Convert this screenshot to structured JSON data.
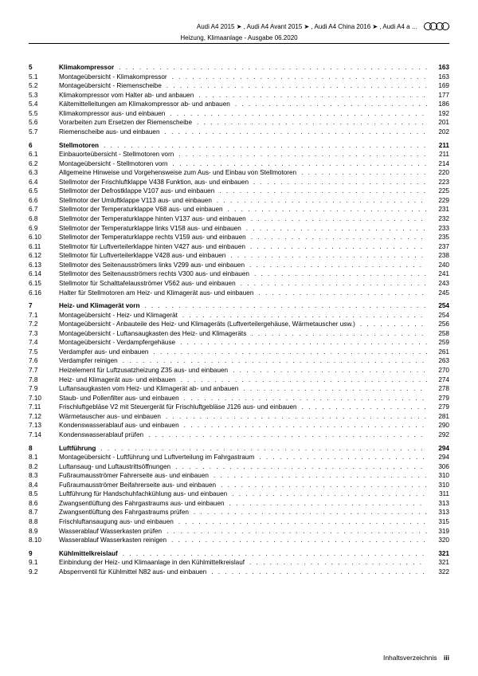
{
  "header": {
    "line1": "Audi A4 2015 ➤ , Audi A4 Avant 2015 ➤ , Audi A4 China 2016 ➤ , Audi A4 a ...",
    "line2": "Heizung, Klimaanlage - Ausgabe 06.2020"
  },
  "footer": {
    "label": "Inhaltsverzeichnis",
    "page": "iii"
  },
  "sections": [
    {
      "num": "5",
      "title": "Klimakompressor",
      "page": "163",
      "head": true,
      "items": [
        {
          "num": "5.1",
          "title": "Montageübersicht - Klimakompressor",
          "page": "163"
        },
        {
          "num": "5.2",
          "title": "Montageübersicht - Riemenscheibe",
          "page": "169"
        },
        {
          "num": "5.3",
          "title": "Klimakompressor vom Halter ab- und anbauen",
          "page": "177"
        },
        {
          "num": "5.4",
          "title": "Kältemittelleitungen am Klimakompressor ab- und anbauen",
          "page": "186"
        },
        {
          "num": "5.5",
          "title": "Klimakompressor aus- und einbauen",
          "page": "192"
        },
        {
          "num": "5.6",
          "title": "Vorarbeiten zum Ersetzen der Riemenscheibe",
          "page": "201"
        },
        {
          "num": "5.7",
          "title": "Riemenscheibe aus- und einbauen",
          "page": "202"
        }
      ]
    },
    {
      "num": "6",
      "title": "Stellmotoren",
      "page": "211",
      "head": true,
      "items": [
        {
          "num": "6.1",
          "title": "Einbauorteübersicht - Stellmotoren vorn",
          "page": "211"
        },
        {
          "num": "6.2",
          "title": "Montageübersicht - Stellmotoren vorn",
          "page": "214"
        },
        {
          "num": "6.3",
          "title": "Allgemeine Hinweise und Vorgehensweise zum Aus- und Einbau von Stellmotoren",
          "page": "220"
        },
        {
          "num": "6.4",
          "title": "Stellmotor der Frischluftklappe V438 Funktion, aus- und einbauen",
          "page": "223"
        },
        {
          "num": "6.5",
          "title": "Stellmotor der Defrostklappe V107 aus- und einbauen",
          "page": "225"
        },
        {
          "num": "6.6",
          "title": "Stellmotor der Umluftklappe V113 aus- und einbauen",
          "page": "229"
        },
        {
          "num": "6.7",
          "title": "Stellmotor der Temperaturklappe V68 aus- und einbauen",
          "page": "231"
        },
        {
          "num": "6.8",
          "title": "Stellmotor der Temperaturklappe hinten V137 aus- und einbauen",
          "page": "232"
        },
        {
          "num": "6.9",
          "title": "Stellmotor der Temperaturklappe links V158 aus- und einbauen",
          "page": "233"
        },
        {
          "num": "6.10",
          "title": "Stellmotor der Temperaturklappe rechts V159 aus- und einbauen",
          "page": "235"
        },
        {
          "num": "6.11",
          "title": "Stellmotor für Luftverteilerklappe hinten V427 aus- und einbauen",
          "page": "237"
        },
        {
          "num": "6.12",
          "title": "Stellmotor für Luftverteilerklappe V428 aus- und einbauen",
          "page": "238"
        },
        {
          "num": "6.13",
          "title": "Stellmotor des Seitenausströmers links V299 aus- und einbauen",
          "page": "240"
        },
        {
          "num": "6.14",
          "title": "Stellmotor des Seitenausströmers rechts V300 aus- und einbauen",
          "page": "241"
        },
        {
          "num": "6.15",
          "title": "Stellmotor für Schalttafelausströmer V562 aus- und einbauen",
          "page": "243"
        },
        {
          "num": "6.16",
          "title": "Halter für Stellmotoren am Heiz- und Klimagerät aus- und einbauen",
          "page": "245"
        }
      ]
    },
    {
      "num": "7",
      "title": "Heiz- und Klimagerät vorn",
      "page": "254",
      "head": true,
      "items": [
        {
          "num": "7.1",
          "title": "Montageübersicht - Heiz- und Klimagerät",
          "page": "254"
        },
        {
          "num": "7.2",
          "title": "Montageübersicht - Anbauteile des Heiz- und Klimageräts (Luftverteilergehäuse, Wärmetauscher usw.)",
          "page": "256",
          "multiline": true
        },
        {
          "num": "7.3",
          "title": "Montageübersicht - Luftansaugkasten des Heiz- und Klimageräts",
          "page": "258"
        },
        {
          "num": "7.4",
          "title": "Montageübersicht - Verdampfergehäuse",
          "page": "259"
        },
        {
          "num": "7.5",
          "title": "Verdampfer aus- und einbauen",
          "page": "261"
        },
        {
          "num": "7.6",
          "title": "Verdampfer reinigen",
          "page": "263"
        },
        {
          "num": "7.7",
          "title": "Heizelement für Luftzusatzheizung Z35 aus- und einbauen",
          "page": "270"
        },
        {
          "num": "7.8",
          "title": "Heiz- und Klimagerät aus- und einbauen",
          "page": "274"
        },
        {
          "num": "7.9",
          "title": "Luftansaugkasten vom Heiz- und Klimagerät ab- und anbauen",
          "page": "278"
        },
        {
          "num": "7.10",
          "title": "Staub- und Pollenfilter aus- und einbauen",
          "page": "279"
        },
        {
          "num": "7.11",
          "title": "Frischluftgebläse V2 mit Steuergerät für Frischluftgebläse J126 aus- und einbauen",
          "page": "279"
        },
        {
          "num": "7.12",
          "title": "Wärmetauscher aus- und einbauen",
          "page": "281"
        },
        {
          "num": "7.13",
          "title": "Kondenswasserablauf aus- und einbauen",
          "page": "290"
        },
        {
          "num": "7.14",
          "title": "Kondenswasserablauf prüfen",
          "page": "292"
        }
      ]
    },
    {
      "num": "8",
      "title": "Luftführung",
      "page": "294",
      "head": true,
      "items": [
        {
          "num": "8.1",
          "title": "Montageübersicht - Luftführung und Luftverteilung im Fahrgastraum",
          "page": "294"
        },
        {
          "num": "8.2",
          "title": "Luftansaug- und Luftaustrittsöffnungen",
          "page": "306"
        },
        {
          "num": "8.3",
          "title": "Fußraumausströmer Fahrerseite aus- und einbauen",
          "page": "310"
        },
        {
          "num": "8.4",
          "title": "Fußraumausströmer Beifahrerseite aus- und einbauen",
          "page": "310"
        },
        {
          "num": "8.5",
          "title": "Luftführung für Handschuhfachkühlung aus- und einbauen",
          "page": "311"
        },
        {
          "num": "8.6",
          "title": "Zwangsentlüftung des Fahrgastraums aus- und einbauen",
          "page": "313"
        },
        {
          "num": "8.7",
          "title": "Zwangsentlüftung des Fahrgastraums prüfen",
          "page": "313"
        },
        {
          "num": "8.8",
          "title": "Frischluftansaugung aus- und einbauen",
          "page": "315"
        },
        {
          "num": "8.9",
          "title": "Wasserablauf Wasserkasten prüfen",
          "page": "319"
        },
        {
          "num": "8.10",
          "title": "Wasserablauf Wasserkasten reinigen",
          "page": "320"
        }
      ]
    },
    {
      "num": "9",
      "title": "Kühlmittelkreislauf",
      "page": "321",
      "head": true,
      "items": [
        {
          "num": "9.1",
          "title": "Einbindung der Heiz- und Klimaanlage in den Kühlmittelkreislauf",
          "page": "321"
        },
        {
          "num": "9.2",
          "title": "Absperrventil für Kühlmittel N82 aus- und einbauen",
          "page": "322"
        }
      ]
    }
  ]
}
